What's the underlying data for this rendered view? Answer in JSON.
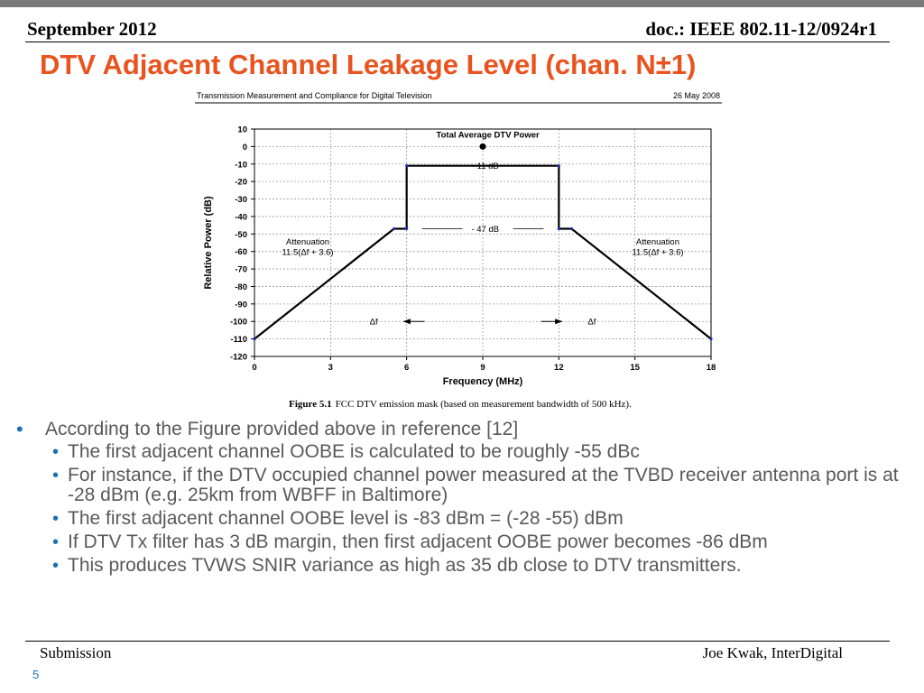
{
  "header": {
    "left": "September 2012",
    "right": "doc.: IEEE 802.11-12/0924r1"
  },
  "title": "DTV Adjacent Channel Leakage Level (chan. N±1)",
  "figure": {
    "header_left": "Transmission Measurement and Compliance for Digital Television",
    "header_right": "26 May 2008",
    "caption_label": "Figure 5.1",
    "caption_text": "FCC DTV emission mask (based on measurement bandwidth of 500 kHz).",
    "annotations": {
      "total_power": "Total Average DTV  Power",
      "level_11": "- 11 dB",
      "level_47": "- 47 dB",
      "atten_left_1": "Attenuation",
      "atten_left_2": "11.5(Δf + 3.6)",
      "atten_right_1": "Attenuation",
      "atten_right_2": "11.5(Δf + 3.6)",
      "df_left": "Δf",
      "df_right": "Δf"
    }
  },
  "chart_data": {
    "type": "line",
    "xlabel": "Frequency  (MHz)",
    "ylabel": "Relative Power  (dB)",
    "xlim": [
      0,
      18
    ],
    "ylim": [
      -120,
      10
    ],
    "xticks": [
      0,
      3,
      6,
      9,
      12,
      15,
      18
    ],
    "yticks": [
      10,
      0,
      -10,
      -20,
      -30,
      -40,
      -50,
      -60,
      -70,
      -80,
      -90,
      -100,
      -110,
      -120
    ],
    "grid": true,
    "series": [
      {
        "x": [
          0,
          5.5,
          6,
          6,
          12,
          12,
          12.5,
          18
        ],
        "y": [
          -110,
          -47,
          -47,
          -11,
          -11,
          -47,
          -47,
          -110
        ]
      }
    ],
    "point": {
      "x": 9,
      "y": 0
    }
  },
  "bullets": [
    {
      "text": "According to the Figure provided above in reference [12]",
      "sub": [
        "The first adjacent channel OOBE is calculated to be roughly -55 dBc",
        "For instance, if the DTV occupied channel power measured at the TVBD receiver antenna port is at -28 dBm (e.g. 25km from WBFF in Baltimore)",
        "The first adjacent channel OOBE level is -83 dBm = (-28 -55) dBm",
        "If DTV Tx filter has 3 dB margin, then first adjacent OOBE power becomes -86 dBm",
        "This produces TVWS SNIR variance as high as 35 db close to DTV transmitters."
      ]
    }
  ],
  "footer": {
    "left": "Submission",
    "right": "Joe Kwak, InterDigital",
    "page": "5"
  },
  "colors": {
    "title": "#e8531e",
    "bullet": "#1f6fb8",
    "body_text": "#595959"
  }
}
